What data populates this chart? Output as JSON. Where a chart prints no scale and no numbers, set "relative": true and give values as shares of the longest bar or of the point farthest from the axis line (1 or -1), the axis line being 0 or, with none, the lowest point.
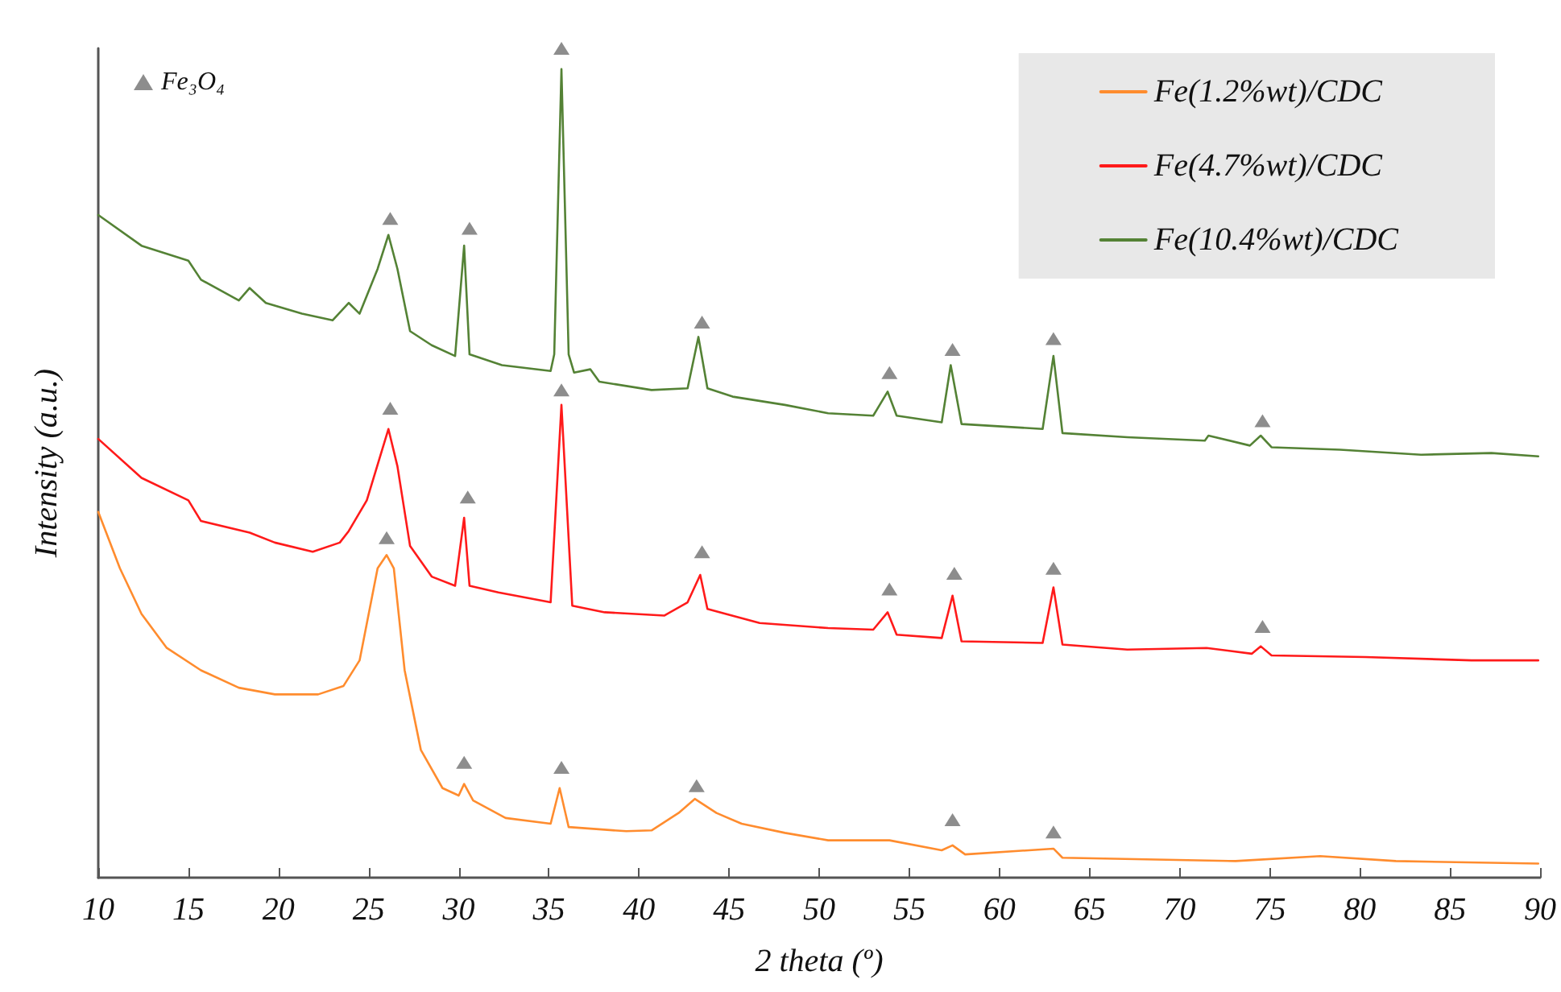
{
  "chart_data": {
    "type": "line",
    "xlabel": "2 theta (º)",
    "ylabel": "Intensity (a.u.)",
    "relative": true,
    "xlim": [
      10,
      90
    ],
    "xticks": [
      10,
      15,
      20,
      25,
      30,
      35,
      40,
      45,
      50,
      55,
      60,
      65,
      70,
      75,
      80,
      85,
      90
    ],
    "grid": false,
    "legend": "top right",
    "line_style": "solid",
    "marker": "none",
    "series": [
      {
        "name": "Fe(1.2%wt)/CDC",
        "color": "#ff8c2e",
        "x": [
          10.0,
          11.2,
          12.4,
          13.8,
          15.7,
          17.8,
          19.8,
          22.2,
          23.6,
          24.5,
          25.5,
          26.0,
          26.4,
          27.0,
          27.9,
          29.1,
          30.0,
          30.3,
          30.8,
          32.6,
          35.1,
          35.6,
          36.1,
          39.3,
          40.7,
          42.2,
          43.1,
          44.3,
          45.7,
          48.1,
          50.5,
          53.9,
          56.8,
          57.4,
          58.1,
          63.0,
          63.5,
          73.1,
          77.8,
          82.0,
          89.9
        ],
        "values": [
          0.441,
          0.373,
          0.318,
          0.277,
          0.25,
          0.229,
          0.221,
          0.221,
          0.231,
          0.262,
          0.373,
          0.389,
          0.373,
          0.25,
          0.154,
          0.108,
          0.099,
          0.113,
          0.093,
          0.072,
          0.065,
          0.108,
          0.061,
          0.056,
          0.057,
          0.078,
          0.095,
          0.078,
          0.065,
          0.054,
          0.045,
          0.045,
          0.033,
          0.039,
          0.028,
          0.035,
          0.024,
          0.02,
          0.026,
          0.02,
          0.017
        ]
      },
      {
        "name": "Fe(4.7%wt)/CDC",
        "color": "#ff1a1a",
        "x": [
          10.0,
          12.4,
          15.0,
          15.7,
          18.4,
          19.8,
          21.9,
          23.4,
          23.9,
          24.9,
          26.1,
          26.6,
          27.3,
          28.5,
          29.8,
          30.3,
          30.6,
          32.2,
          35.1,
          35.7,
          36.3,
          38.1,
          41.4,
          42.7,
          43.4,
          43.8,
          46.7,
          50.5,
          53.0,
          53.8,
          54.3,
          56.8,
          57.4,
          57.9,
          62.4,
          63.0,
          63.5,
          67.1,
          71.5,
          74.0,
          74.5,
          75.1,
          80.3,
          86.2,
          89.9
        ],
        "values": [
          0.529,
          0.482,
          0.455,
          0.43,
          0.416,
          0.404,
          0.393,
          0.404,
          0.418,
          0.455,
          0.541,
          0.496,
          0.4,
          0.363,
          0.352,
          0.434,
          0.352,
          0.344,
          0.332,
          0.57,
          0.328,
          0.32,
          0.316,
          0.332,
          0.365,
          0.324,
          0.307,
          0.301,
          0.299,
          0.32,
          0.293,
          0.289,
          0.34,
          0.285,
          0.283,
          0.35,
          0.281,
          0.275,
          0.277,
          0.27,
          0.279,
          0.268,
          0.266,
          0.262,
          0.262
        ]
      },
      {
        "name": "Fe(10.4%wt)/CDC",
        "color": "#548235",
        "x": [
          10.0,
          12.4,
          15.0,
          15.7,
          17.8,
          18.4,
          19.3,
          21.3,
          23.0,
          23.9,
          24.5,
          25.5,
          26.1,
          26.6,
          27.3,
          28.5,
          29.8,
          30.3,
          30.6,
          32.4,
          35.1,
          35.3,
          35.7,
          36.1,
          36.4,
          37.3,
          37.8,
          40.7,
          42.7,
          43.3,
          43.8,
          45.2,
          48.1,
          50.5,
          53.0,
          53.8,
          54.3,
          56.8,
          57.3,
          57.9,
          62.4,
          63.0,
          63.5,
          67.1,
          71.4,
          71.6,
          73.9,
          74.5,
          75.1,
          78.9,
          83.4,
          87.3,
          89.9
        ],
        "values": [
          0.799,
          0.762,
          0.744,
          0.721,
          0.696,
          0.711,
          0.693,
          0.68,
          0.672,
          0.693,
          0.68,
          0.734,
          0.775,
          0.734,
          0.659,
          0.642,
          0.629,
          0.762,
          0.631,
          0.618,
          0.611,
          0.631,
          0.975,
          0.631,
          0.609,
          0.613,
          0.598,
          0.588,
          0.59,
          0.652,
          0.59,
          0.58,
          0.57,
          0.56,
          0.557,
          0.586,
          0.557,
          0.549,
          0.618,
          0.547,
          0.541,
          0.629,
          0.536,
          0.531,
          0.527,
          0.533,
          0.521,
          0.533,
          0.519,
          0.516,
          0.51,
          0.512,
          0.508
        ]
      },
      {
        "name": "Fe₃O₄",
        "type": "scatter",
        "marker": "triangle",
        "color": "#707070",
        "x": [
          26.0,
          30.3,
          35.7,
          43.2,
          57.4,
          63.0,
          26.2,
          30.5,
          35.7,
          43.5,
          53.9,
          57.5,
          63.0,
          74.6,
          26.2,
          30.6,
          35.7,
          43.5,
          53.9,
          57.4,
          63.0,
          74.6
        ],
        "values": [
          0.41,
          0.139,
          0.133,
          0.111,
          0.07,
          0.055,
          0.566,
          0.459,
          0.588,
          0.393,
          0.348,
          0.367,
          0.373,
          0.303,
          0.795,
          0.783,
          1.0,
          0.67,
          0.609,
          0.637,
          0.65,
          0.551
        ]
      }
    ]
  }
}
